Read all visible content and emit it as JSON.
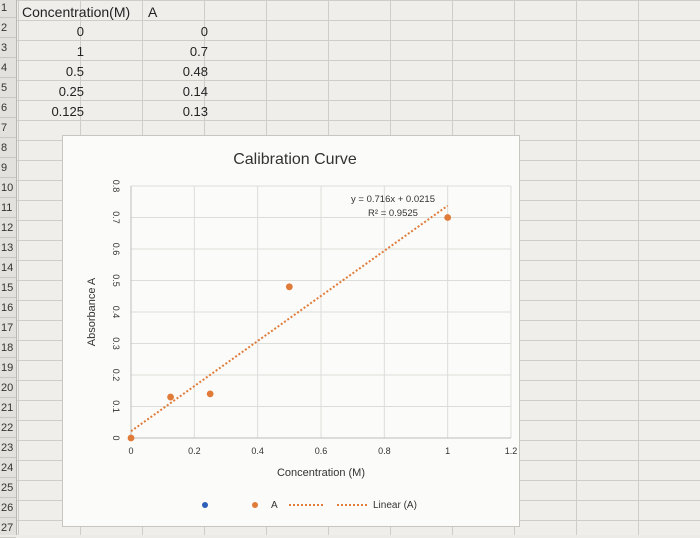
{
  "spreadsheet": {
    "row_numbers": [
      "1",
      "2",
      "3",
      "4",
      "5",
      "6",
      "7",
      "8",
      "9",
      "10",
      "11",
      "12",
      "13",
      "14",
      "15",
      "16",
      "17",
      "18",
      "19",
      "20",
      "21",
      "22",
      "23",
      "24",
      "25",
      "26",
      "27"
    ],
    "header": {
      "col1": "Concentration(M)",
      "col2": "A"
    },
    "rows": [
      {
        "conc": "0",
        "abs": "0"
      },
      {
        "conc": "1",
        "abs": "0.7"
      },
      {
        "conc": "0.5",
        "abs": "0.48"
      },
      {
        "conc": "0.25",
        "abs": "0.14"
      },
      {
        "conc": "0.125",
        "abs": "0.13"
      }
    ]
  },
  "chart_data": {
    "type": "scatter",
    "title": "Calibration Curve",
    "xlabel": "Concentration (M)",
    "ylabel": "Absorbance A",
    "xlim": [
      0,
      1.2
    ],
    "ylim": [
      0,
      0.8
    ],
    "x_ticks": [
      "0",
      "0.2",
      "0.4",
      "0.6",
      "0.8",
      "1",
      "1.2"
    ],
    "y_ticks": [
      "0",
      "0.1",
      "0.2",
      "0.3",
      "0.4",
      "0.5",
      "0.6",
      "0.7",
      "0.8"
    ],
    "grid": true,
    "legend_position": "bottom",
    "series": [
      {
        "name": "A",
        "type": "scatter",
        "color": "#e07b39",
        "x": [
          0,
          1,
          0.5,
          0.25,
          0.125
        ],
        "y": [
          0,
          0.7,
          0.48,
          0.14,
          0.13
        ]
      },
      {
        "name": "Linear (A)",
        "type": "trendline",
        "color": "#e07b39",
        "slope": 0.716,
        "intercept": 0.0215
      }
    ],
    "annotation": {
      "equation": "y = 0.716x + 0.0215",
      "r_squared": "R² = 0.9525"
    },
    "legend_blue_marker_color": "#2e5fb8"
  }
}
